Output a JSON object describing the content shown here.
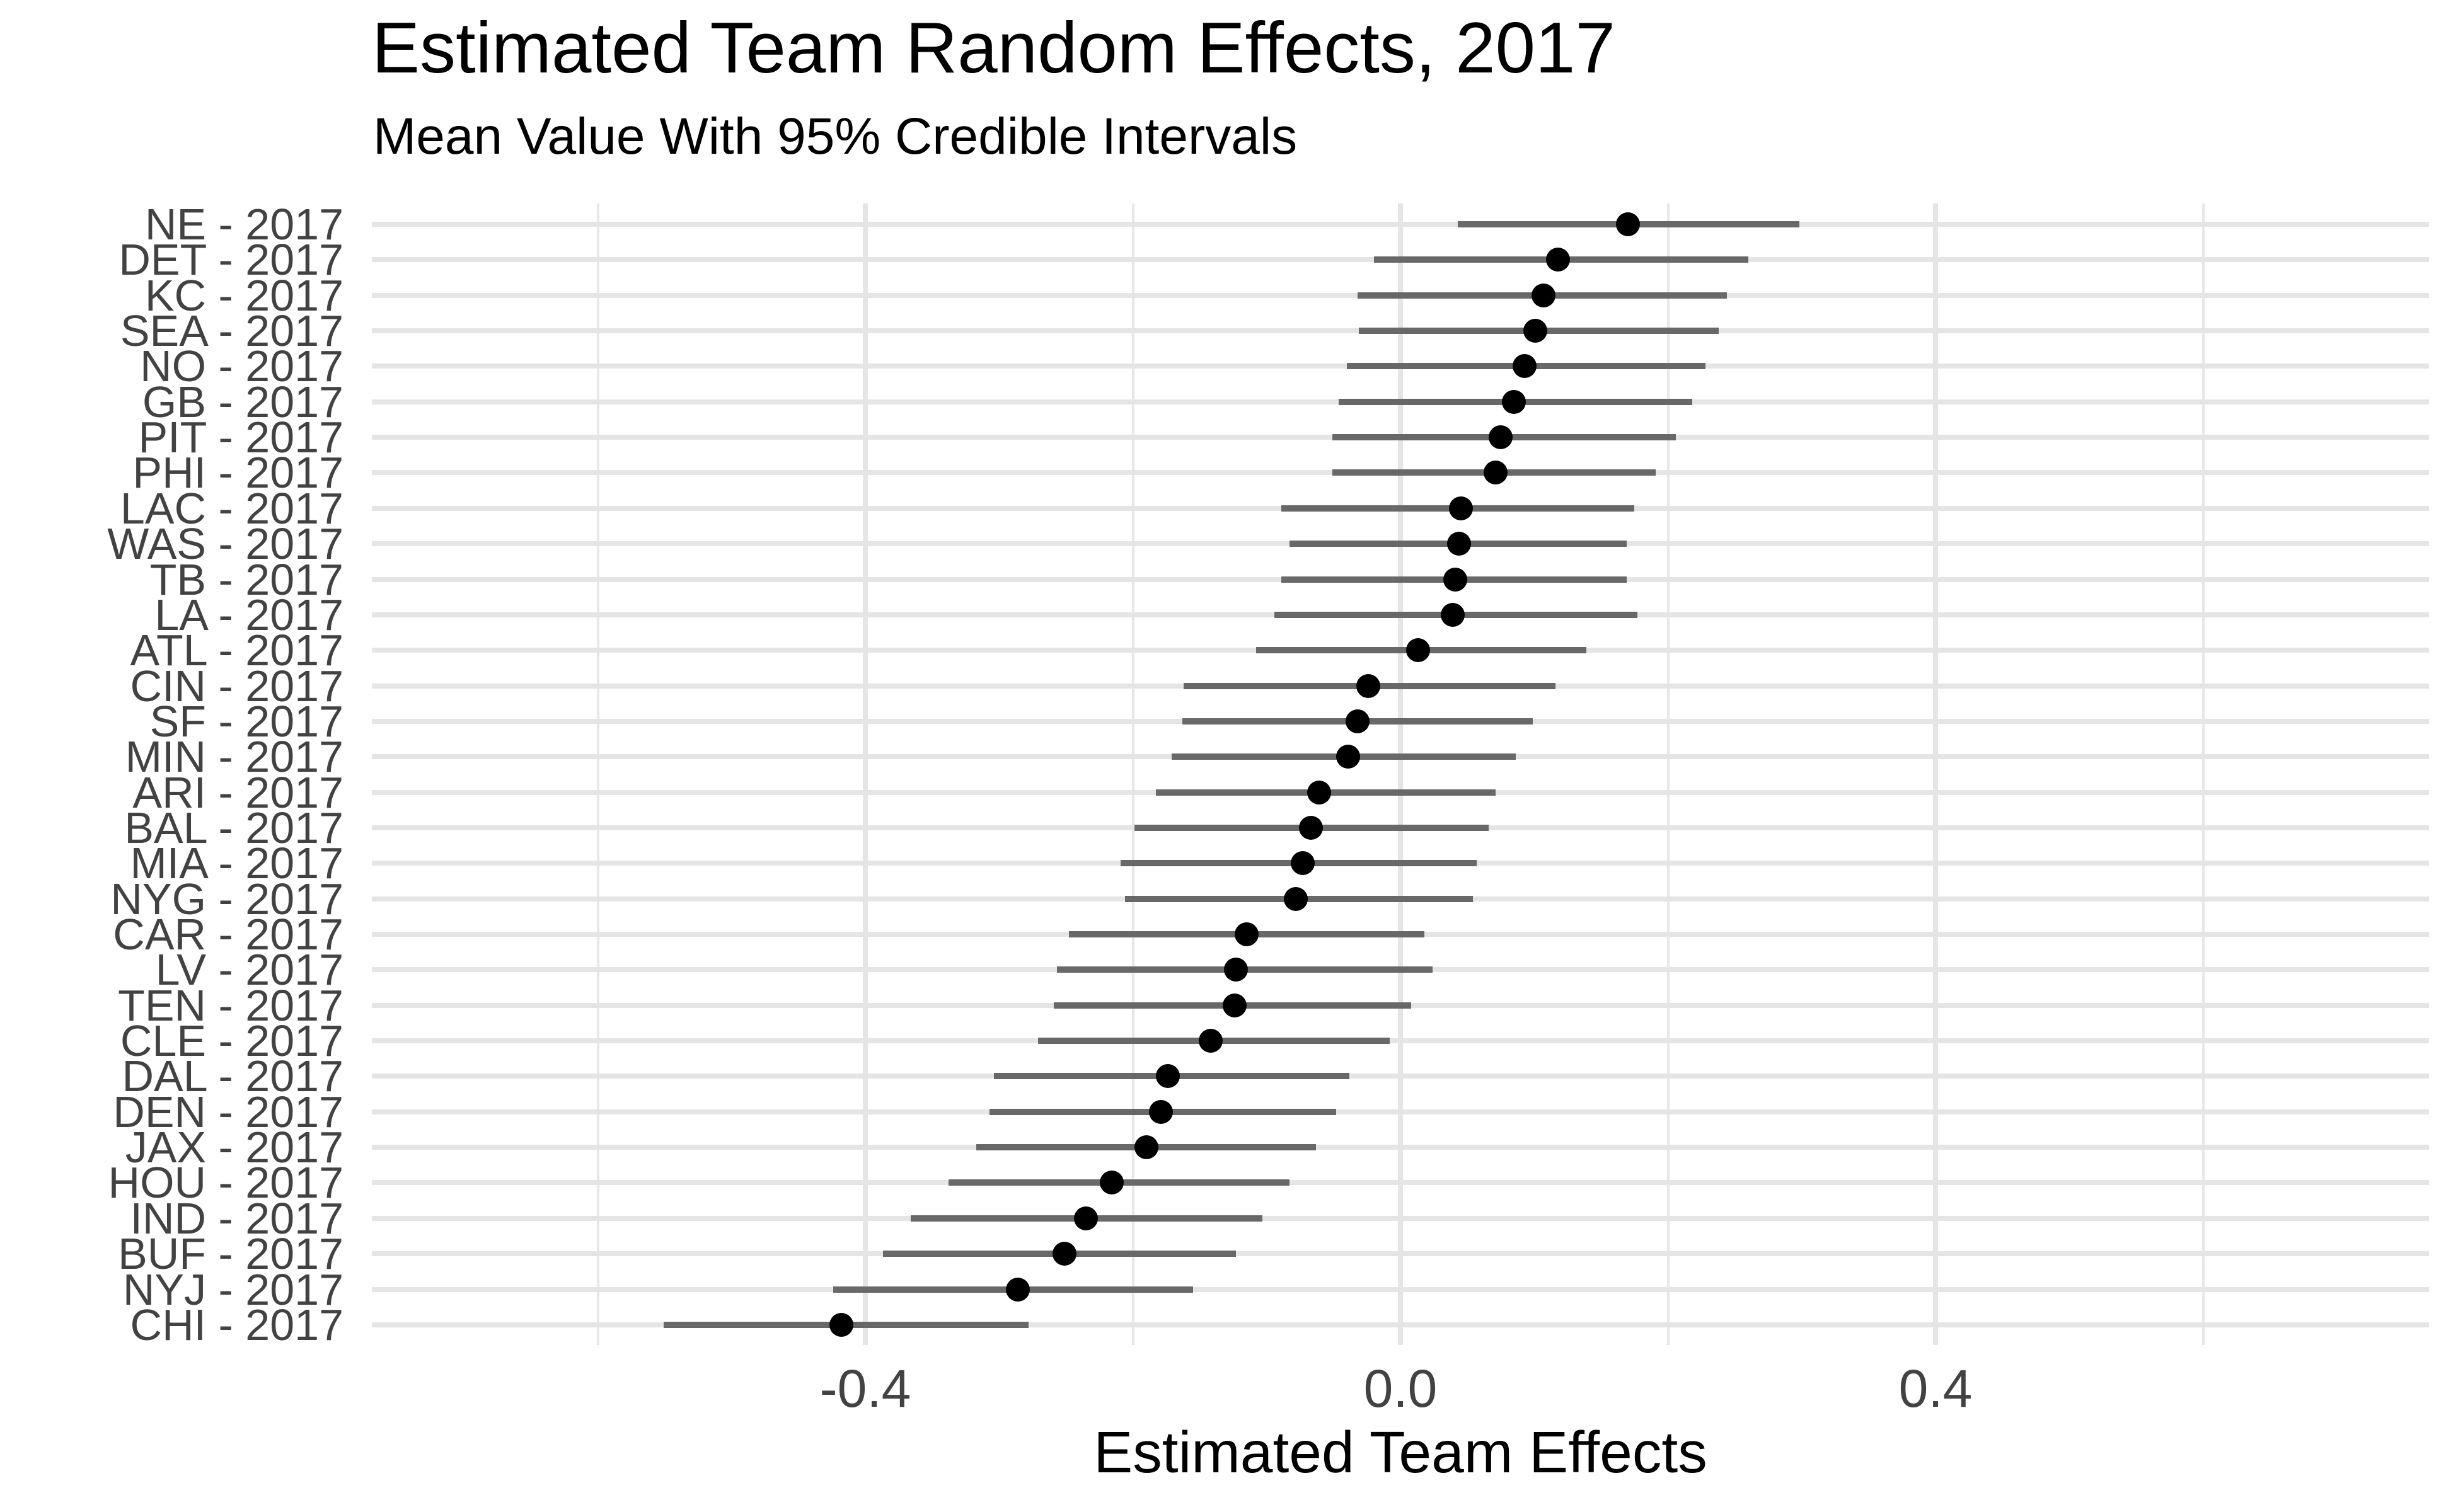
{
  "header": {
    "title": "Estimated Team Random Effects, 2017",
    "subtitle": "Mean Value With 95% Credible Intervals"
  },
  "chart_data": {
    "type": "scatter",
    "variant": "dot-plot-with-error-bars",
    "orientation": "horizontal",
    "title": "Estimated Team Random Effects, 2017",
    "subtitle": "Mean Value With 95% Credible Intervals",
    "xlabel": "Estimated Team Effects",
    "ylabel": "",
    "legend_position": "none",
    "grid": true,
    "xlim": [
      -0.77,
      0.77
    ],
    "x_major_ticks": {
      "values": [
        -0.4,
        0.0,
        0.4
      ],
      "labels": [
        "-0.4",
        "0.0",
        "0.4"
      ]
    },
    "x_minor_ticks": [
      -0.6,
      -0.2,
      0.2,
      0.6
    ],
    "categories": [
      "NE - 2017",
      "DET - 2017",
      "KC - 2017",
      "SEA - 2017",
      "NO - 2017",
      "GB - 2017",
      "PIT - 2017",
      "PHI - 2017",
      "LAC - 2017",
      "WAS - 2017",
      "TB - 2017",
      "LA - 2017",
      "ATL - 2017",
      "CIN - 2017",
      "SF - 2017",
      "MIN - 2017",
      "ARI - 2017",
      "BAL - 2017",
      "MIA - 2017",
      "NYG - 2017",
      "CAR - 2017",
      "LV - 2017",
      "TEN - 2017",
      "CLE - 2017",
      "DAL - 2017",
      "DEN - 2017",
      "JAX - 2017",
      "HOU - 2017",
      "IND - 2017",
      "BUF - 2017",
      "NYJ - 2017",
      "CHI - 2017"
    ],
    "series": [
      {
        "name": "mean",
        "values": [
          0.17,
          0.118,
          0.107,
          0.101,
          0.093,
          0.085,
          0.075,
          0.071,
          0.045,
          0.044,
          0.041,
          0.039,
          0.013,
          -0.024,
          -0.032,
          -0.039,
          -0.061,
          -0.067,
          -0.073,
          -0.078,
          -0.115,
          -0.123,
          -0.124,
          -0.142,
          -0.174,
          -0.179,
          -0.19,
          -0.216,
          -0.235,
          -0.251,
          -0.286,
          -0.418
        ]
      },
      {
        "name": "ci_lower",
        "values": [
          0.043,
          -0.02,
          -0.032,
          -0.031,
          -0.04,
          -0.046,
          -0.051,
          -0.051,
          -0.089,
          -0.083,
          -0.089,
          -0.094,
          -0.108,
          -0.162,
          -0.163,
          -0.171,
          -0.183,
          -0.199,
          -0.209,
          -0.206,
          -0.248,
          -0.257,
          -0.259,
          -0.271,
          -0.304,
          -0.307,
          -0.317,
          -0.338,
          -0.366,
          -0.387,
          -0.424,
          -0.551
        ]
      },
      {
        "name": "ci_upper",
        "values": [
          0.298,
          0.26,
          0.244,
          0.238,
          0.228,
          0.218,
          0.206,
          0.191,
          0.175,
          0.169,
          0.169,
          0.177,
          0.139,
          0.116,
          0.099,
          0.086,
          0.071,
          0.066,
          0.057,
          0.054,
          0.018,
          0.024,
          0.008,
          -0.008,
          -0.038,
          -0.048,
          -0.063,
          -0.083,
          -0.103,
          -0.123,
          -0.155,
          -0.278
        ]
      }
    ],
    "colors": {
      "dot": "#000000",
      "interval_bar": "#686868",
      "gridline": "#e5e5e5",
      "axis_text": "#424242",
      "title_text": "#000000",
      "background": "#ffffff"
    }
  }
}
